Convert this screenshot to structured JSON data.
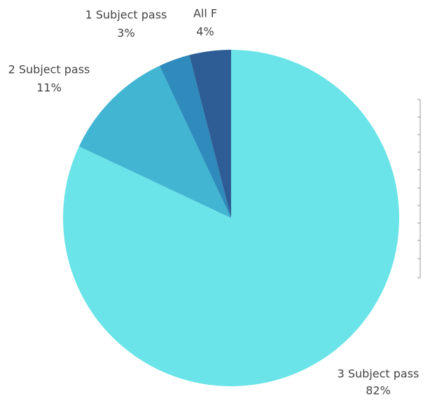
{
  "chart_data": {
    "type": "pie",
    "categories": [
      "3 Subject pass",
      "2 Subject pass",
      "1 Subject pass",
      "All F"
    ],
    "values": [
      82,
      11,
      3,
      4
    ],
    "value_labels": [
      "82%",
      "11%",
      "3%",
      "4%"
    ],
    "colors": [
      "#6ae4e8",
      "#42b5d3",
      "#2e8bbb",
      "#2e5d96"
    ]
  }
}
